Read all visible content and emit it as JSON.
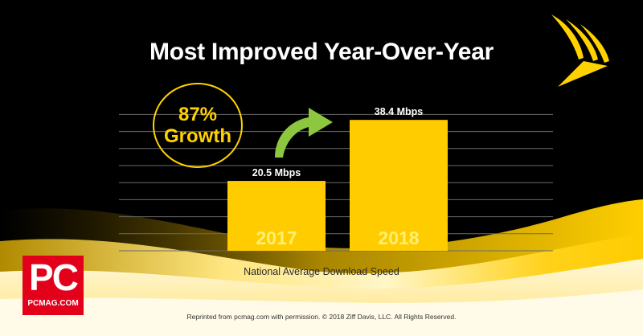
{
  "title": "Most Improved Year-Over-Year",
  "growth": {
    "percent": "87%",
    "label": "Growth"
  },
  "chart_data": {
    "type": "bar",
    "categories": [
      "2017",
      "2018"
    ],
    "values": [
      20.5,
      38.4
    ],
    "data_labels": [
      "20.5 Mbps",
      "38.4 Mbps"
    ],
    "xlabel": "National Average Download Speed",
    "ylabel": "",
    "ylim": [
      0,
      40
    ],
    "grid": true,
    "colors": {
      "bar": "#ffcc00",
      "bar_label": "#f3d36a",
      "arrow": "#8dc63f",
      "grid": "#6a6a6a"
    }
  },
  "logo": {
    "pc": "PC",
    "site": "PCMAG.COM"
  },
  "brand": {
    "icon": "sprint-logo-icon",
    "color": "#ffd200"
  },
  "footer": "Reprinted from pcmag.com with permission. © 2018 Ziff Davis, LLC. All Rights Reserved."
}
